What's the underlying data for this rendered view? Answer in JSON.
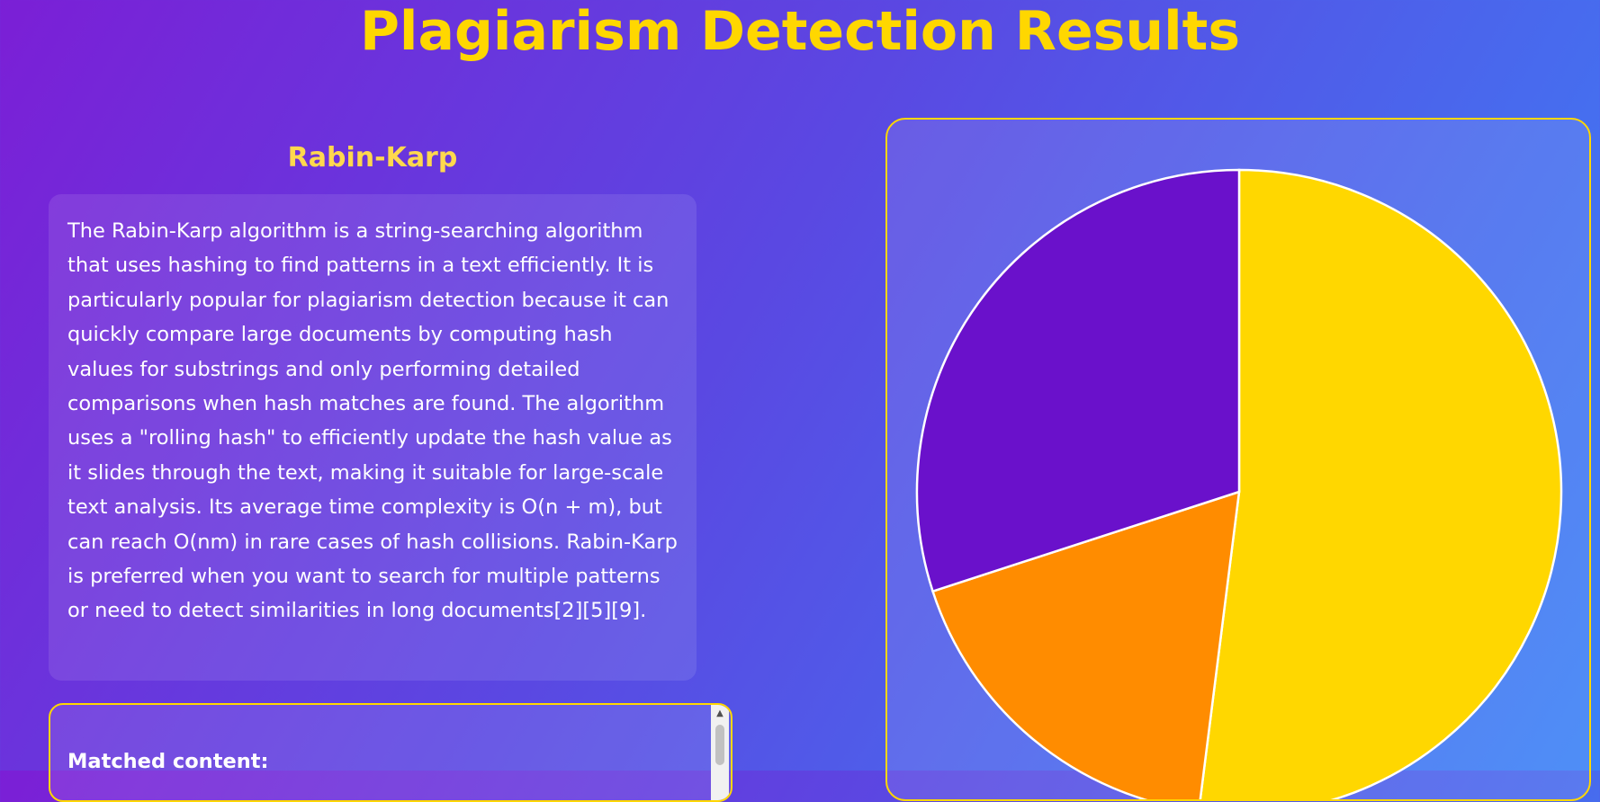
{
  "page": {
    "title": "Plagiarism Detection Results"
  },
  "algorithm": {
    "name": "Rabin-Karp",
    "description": "The Rabin-Karp algorithm is a string-searching algorithm that uses hashing to find patterns in a text efficiently. It is particularly popular for plagiarism detection because it can quickly compare large documents by computing hash values for substrings and only performing detailed comparisons when hash matches are found. The algorithm uses a \"rolling hash\" to efficiently update the hash value as it slides through the text, making it suitable for large-scale text analysis. Its average time complexity is O(n + m), but can reach O(nm) in rare cases of hash collisions. Rabin-Karp is preferred when you want to search for multiple patterns or need to detect similarities in long documents[2][5][9]."
  },
  "matches": {
    "label": "Matched content:"
  },
  "colors": {
    "accent": "#ffd700",
    "slice_yellow": "#ffd700",
    "slice_orange": "#ff8c00",
    "slice_purple": "#6a11cb",
    "slice_border": "#ffffff"
  },
  "chart_data": {
    "type": "pie",
    "values": [
      52,
      18,
      30
    ],
    "colors": [
      "#ffd700",
      "#ff8c00",
      "#6a11cb"
    ],
    "start": "top",
    "direction": "clockwise"
  }
}
